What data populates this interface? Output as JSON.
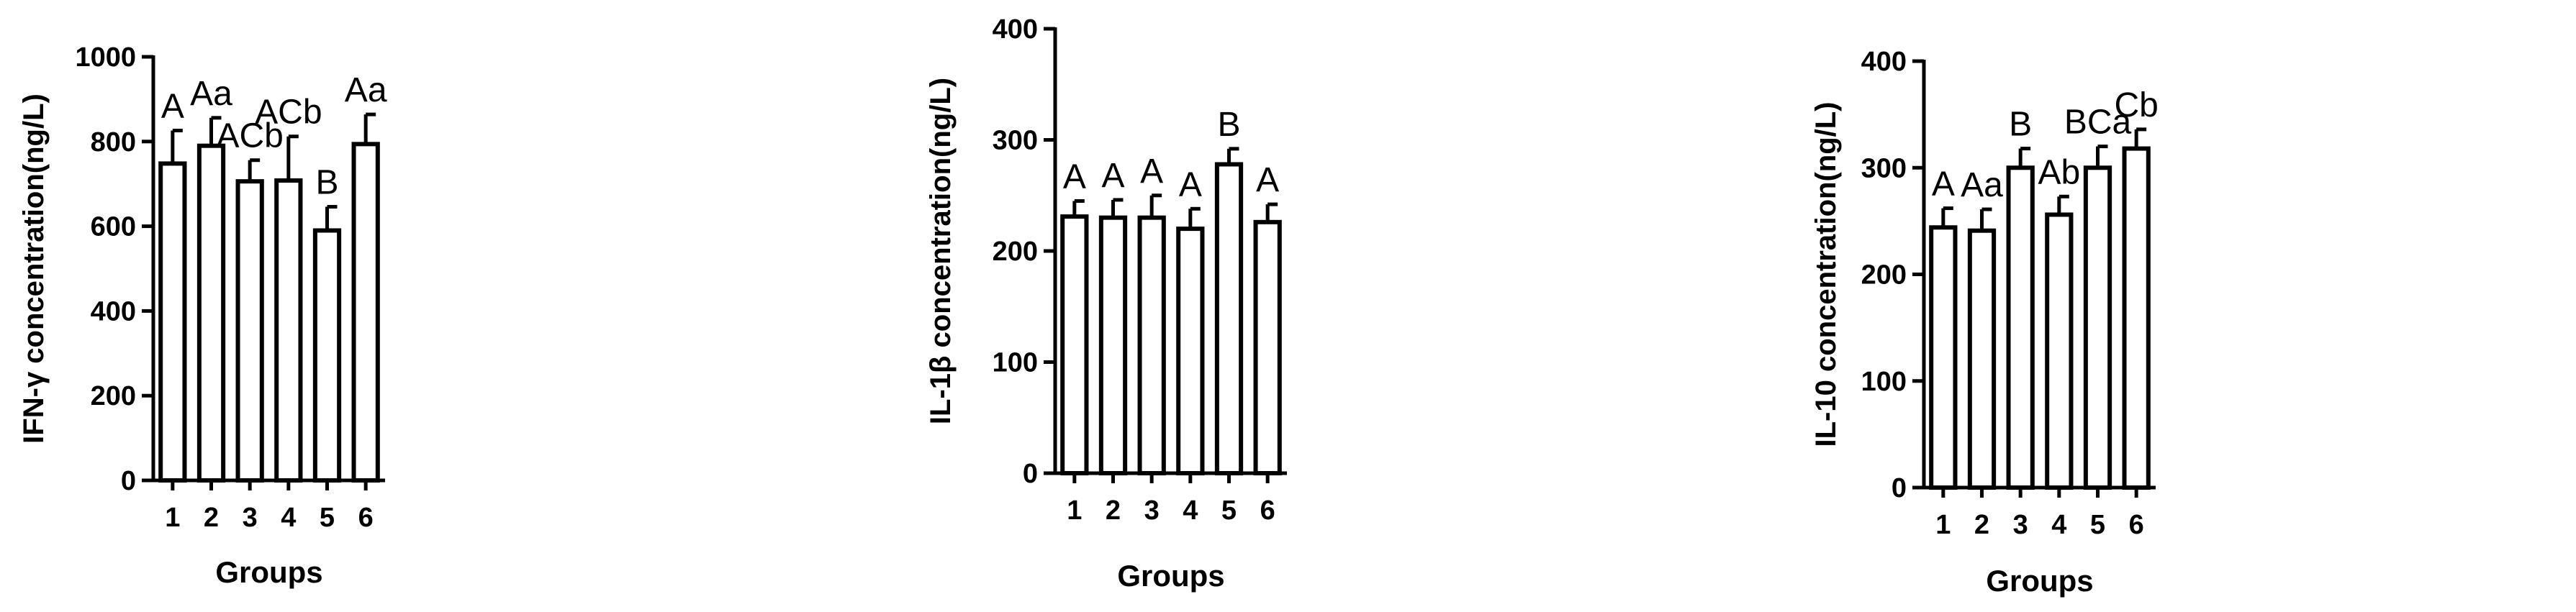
{
  "chart_data": [
    {
      "type": "bar",
      "ylabel": "IFN-γ concentration(ng/L)",
      "xlabel": "Groups",
      "categories": [
        "1",
        "2",
        "3",
        "4",
        "5",
        "6"
      ],
      "values": [
        748,
        790,
        706,
        708,
        590,
        794
      ],
      "errors": [
        78,
        66,
        50,
        104,
        56,
        70
      ],
      "labels": [
        "A",
        "Aa",
        "ACb",
        "ACb",
        "B",
        "Aa"
      ],
      "ylim": [
        0,
        1000
      ],
      "yticks": [
        "0",
        "200",
        "400",
        "600",
        "800",
        "1000"
      ],
      "ytick_values": [
        0,
        200,
        400,
        600,
        800,
        1000
      ]
    },
    {
      "type": "bar",
      "ylabel": "IL-1β concentration(ng/L)",
      "xlabel": "Groups",
      "categories": [
        "1",
        "2",
        "3",
        "4",
        "5",
        "6"
      ],
      "values": [
        231,
        230,
        230,
        220,
        278,
        226
      ],
      "errors": [
        14,
        16,
        20,
        18,
        14,
        16
      ],
      "labels": [
        "A",
        "A",
        "A",
        "A",
        "B",
        "A"
      ],
      "ylim": [
        0,
        400
      ],
      "yticks": [
        "0",
        "100",
        "200",
        "300",
        "400"
      ],
      "ytick_values": [
        0,
        100,
        200,
        300,
        400
      ]
    },
    {
      "type": "bar",
      "ylabel": "IL-10 concentration(ng/L)",
      "xlabel": "Groups",
      "categories": [
        "1",
        "2",
        "3",
        "4",
        "5",
        "6"
      ],
      "values": [
        244,
        241,
        300,
        256,
        300,
        318
      ],
      "errors": [
        18,
        20,
        18,
        17,
        20,
        18
      ],
      "labels": [
        "A",
        "Aa",
        "B",
        "Ab",
        "BCa",
        "Cb"
      ],
      "ylim": [
        0,
        400
      ],
      "yticks": [
        "0",
        "100",
        "200",
        "300",
        "400"
      ],
      "ytick_values": [
        0,
        100,
        200,
        300,
        400
      ]
    }
  ]
}
